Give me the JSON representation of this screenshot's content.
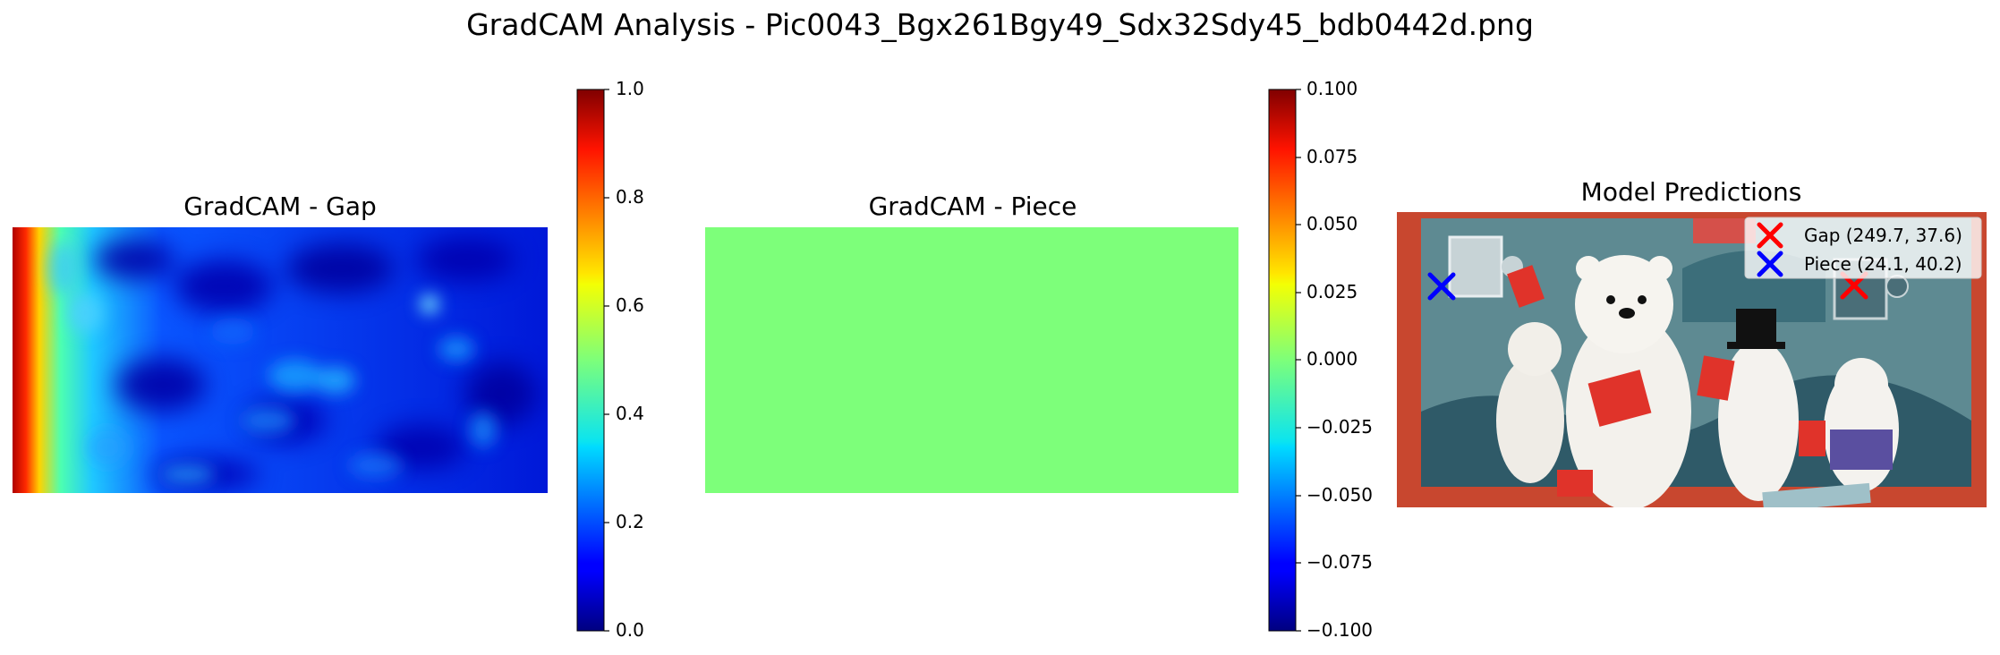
{
  "title": "GradCAM Analysis - Pic0043_Bgx261Bgy49_Sdx32Sdy45_bdb0442d.png",
  "panels": [
    {
      "title": "GradCAM - Gap"
    },
    {
      "title": "GradCAM - Piece"
    },
    {
      "title": "Model Predictions"
    }
  ],
  "colorbars": [
    {
      "ticks": [
        "0.0",
        "0.2",
        "0.4",
        "0.6",
        "0.8",
        "1.0"
      ]
    },
    {
      "ticks": [
        "−0.100",
        "−0.075",
        "−0.050",
        "−0.025",
        "0.000",
        "0.025",
        "0.050",
        "0.075",
        "0.100"
      ]
    }
  ],
  "legend": [
    {
      "label": "Gap (249.7, 37.6)",
      "color": "#ff0000",
      "marker": "x"
    },
    {
      "label": "Piece (24.1, 40.2)",
      "color": "#0000ff",
      "marker": "x"
    }
  ],
  "chart_data": [
    {
      "type": "heatmap",
      "title": "GradCAM - Gap",
      "colormap": "jet",
      "vmin": 0.0,
      "vmax": 1.0,
      "description_values": "high activation along left edge, low-to-moderate elsewhere"
    },
    {
      "type": "heatmap",
      "title": "GradCAM - Piece",
      "colormap": "jet",
      "vmin": -0.1,
      "vmax": 0.1,
      "uniform_value": 0.0
    },
    {
      "type": "scatter",
      "title": "Model Predictions",
      "series": [
        {
          "name": "Gap (249.7, 37.6)",
          "x": [
            249.7
          ],
          "y": [
            37.6
          ],
          "color": "#ff0000"
        },
        {
          "name": "Piece (24.1, 40.2)",
          "x": [
            24.1
          ],
          "y": [
            40.2
          ],
          "color": "#0000ff"
        }
      ]
    }
  ]
}
